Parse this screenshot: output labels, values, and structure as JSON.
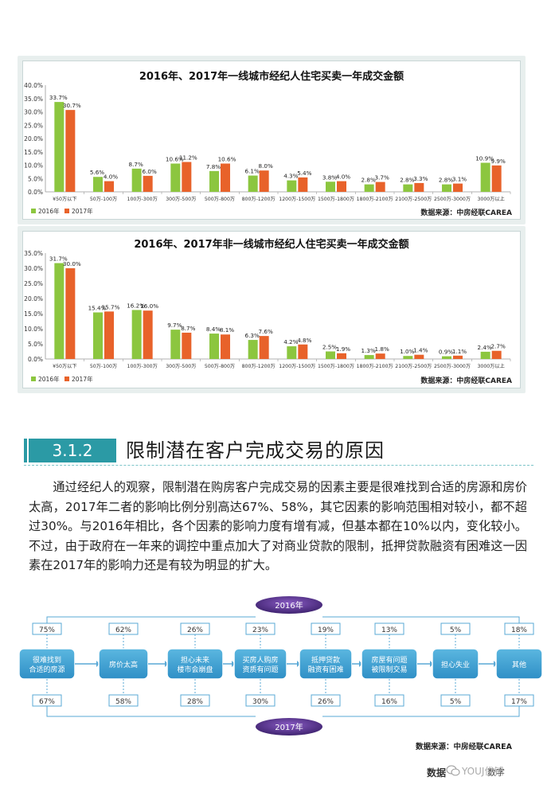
{
  "chart1": {
    "title": "2016年、2017年一线城市经纪人住宅买卖一年成交金额",
    "source": "数据来源：中房经联CAREA"
  },
  "chart2": {
    "title": "2016年、2017年非一线城市经纪人住宅买卖一年成交金额",
    "source": "数据来源：中房经联CAREA"
  },
  "chart_data": [
    {
      "type": "bar",
      "title": "2016年、2017年一线城市经纪人住宅买卖一年成交金额",
      "categories": [
        "¥50万以下",
        "50万-100万",
        "100万-300万",
        "300万-500万",
        "500万-800万",
        "800万-1200万",
        "1200万-1500万",
        "1500万-1800万",
        "1800万-2100万",
        "2100万-2500万",
        "2500万-3000万",
        "3000万以上"
      ],
      "series": [
        {
          "name": "2016年",
          "color": "#8cc63f",
          "values": [
            33.7,
            5.6,
            8.7,
            10.6,
            7.8,
            6.1,
            4.3,
            3.8,
            2.8,
            2.8,
            2.8,
            10.9
          ],
          "labels": [
            "33.7%",
            "5.6%",
            "8.7%",
            "10.6%",
            "7.8%",
            "6.1%",
            "4.3%",
            "3.8%",
            "2.8%",
            "2.8%",
            "2.8%",
            "10.9%"
          ]
        },
        {
          "name": "2017年",
          "color": "#e8622a",
          "values": [
            30.7,
            4.0,
            6.0,
            11.2,
            10.6,
            8.0,
            5.4,
            4.0,
            3.7,
            3.3,
            3.1,
            9.9
          ],
          "labels": [
            "30.7%",
            "4.0%",
            "6.0%",
            "11.2%",
            "10.6%",
            "8.0%",
            "5.4%",
            "4.0%",
            "3.7%",
            "3.3%",
            "3.1%",
            "9.9%"
          ]
        }
      ],
      "ylim": [
        0,
        40
      ],
      "yticks": [
        "0.0%",
        "5.0%",
        "10.0%",
        "15.0%",
        "20.0%",
        "25.0%",
        "30.0%",
        "35.0%",
        "40.0%"
      ],
      "grid": false,
      "legend": "bottom-left"
    },
    {
      "type": "bar",
      "title": "2016年、2017年非一线城市经纪人住宅买卖一年成交金额",
      "categories": [
        "¥50万以下",
        "50万-100万",
        "100万-300万",
        "300万-500万",
        "500万-800万",
        "800万-1200万",
        "1200万-1500万",
        "1500万-1800万",
        "1800万-2100万",
        "2100万-2500万",
        "2500万-3000万",
        "3000万以上"
      ],
      "series": [
        {
          "name": "2016年",
          "color": "#8cc63f",
          "values": [
            31.7,
            15.4,
            16.2,
            9.7,
            8.4,
            6.3,
            4.2,
            2.5,
            1.3,
            1.0,
            0.9,
            2.4
          ],
          "labels": [
            "31.7%",
            "15.4%",
            "16.2%",
            "9.7%",
            "8.4%",
            "6.3%",
            "4.2%",
            "2.5%",
            "1.3%",
            "1.0%",
            "0.9%",
            "2.4%"
          ]
        },
        {
          "name": "2017年",
          "color": "#e8622a",
          "values": [
            30.0,
            15.7,
            16.0,
            8.7,
            8.1,
            7.6,
            4.8,
            1.9,
            1.8,
            1.4,
            1.1,
            2.7
          ],
          "labels": [
            "30.0%",
            "15.7%",
            "16.0%",
            "8.7%",
            "8.1%",
            "7.6%",
            "4.8%",
            "1.9%",
            "1.8%",
            "1.4%",
            "1.1%",
            "2.7%"
          ]
        }
      ],
      "ylim": [
        0,
        35
      ],
      "yticks": [
        "0.0%",
        "5.0%",
        "10.0%",
        "15.0%",
        "20.0%",
        "25.0%",
        "30.0%",
        "35.0%"
      ],
      "grid": false,
      "legend": "bottom-left"
    }
  ],
  "section": {
    "number": "3.1.2",
    "title": "限制潜在客户完成交易的原因",
    "paragraph": "通过经纪人的观察，限制潜在购房客户完成交易的因素主要是很难找到合适的房源和房价太高，2017年二者的影响比例分别高达67%、58%，其它因素的影响范围相对较小，都不超过30%。与2016年相比，各个因素的影响力度有增有减，但基本都在10%以内，变化较小。不过，由于政府在一年来的调控中重点加大了对商业贷款的限制，抵押贷款融资有困难这一因素在2017年的影响力还是有较为明显的扩大。"
  },
  "flow": {
    "year_top": "2016年",
    "year_bottom": "2017年",
    "source": "数据来源：中房经联CAREA",
    "items": [
      {
        "line1": "很难找到",
        "line2": "合适的房源",
        "top": "75%",
        "bottom": "67%"
      },
      {
        "line1": "房价太高",
        "line2": "",
        "top": "62%",
        "bottom": "58%"
      },
      {
        "line1": "担心未来",
        "line2": "楼市会崩盘",
        "top": "26%",
        "bottom": "28%"
      },
      {
        "line1": "买房人购房",
        "line2": "资质有问题",
        "top": "23%",
        "bottom": "30%"
      },
      {
        "line1": "抵押贷款",
        "line2": "融资有困难",
        "top": "19%",
        "bottom": "26%"
      },
      {
        "line1": "房屋有问题",
        "line2": "被限制交易",
        "top": "13%",
        "bottom": "16%"
      },
      {
        "line1": "担心失业",
        "line2": "",
        "top": "5%",
        "bottom": "5%"
      },
      {
        "line1": "其他",
        "line2": "",
        "top": "18%",
        "bottom": "17%"
      }
    ]
  },
  "footer": {
    "left": "数据",
    "watermark": "YOUJ优铺",
    "mid": "数字"
  }
}
